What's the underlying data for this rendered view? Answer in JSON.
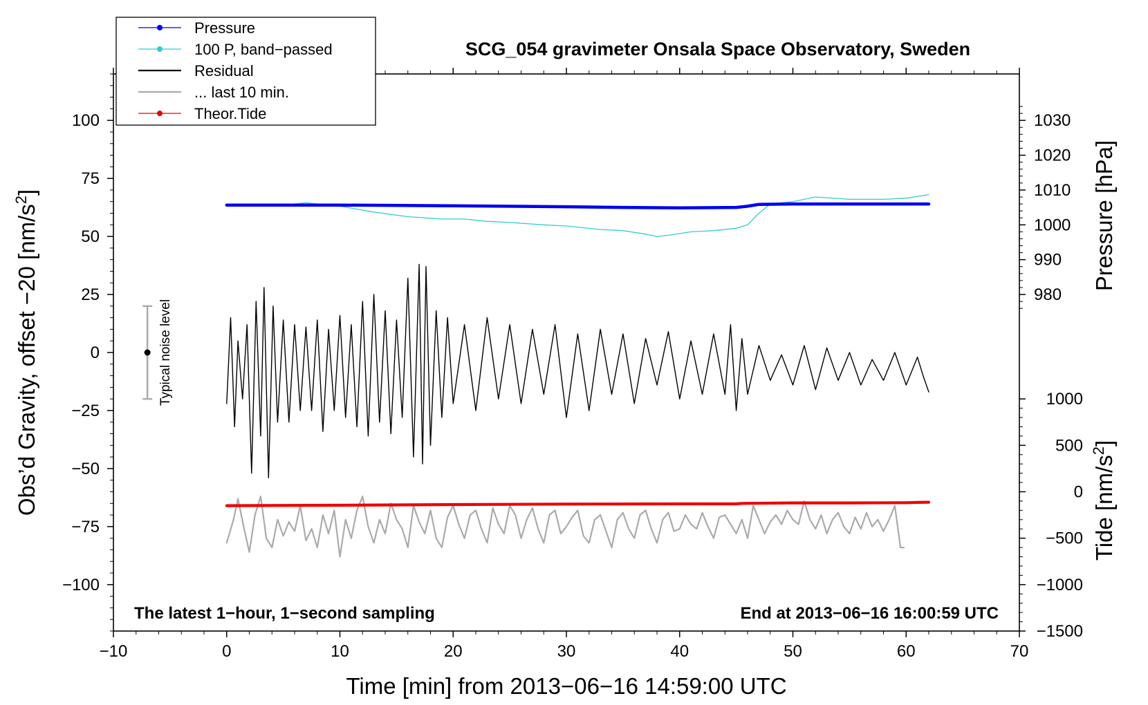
{
  "chart_data": {
    "type": "line",
    "title": "SCG_054 gravimeter Onsala Space Observatory, Sweden",
    "xlabel": "Time [min] from 2013−06−16 14:59:00 UTC",
    "ylabel_left": "Obs’d Gravity, offset −20 [nm/s²]",
    "ylabel_left_parts": {
      "main": "Obs’d Gravity, offset −20 [nm/s",
      "sup": "2",
      "end": "]"
    },
    "ylabel_right_top": "Pressure [hPa]",
    "ylabel_right_bottom": "Tide [nm/s²]",
    "ylabel_right_bottom_parts": {
      "main": "Tide [nm/s",
      "sup": "2",
      "end": "]"
    },
    "xlim": [
      -10,
      70
    ],
    "ylim_left": [
      -120,
      120
    ],
    "x_ticks": [
      -10,
      0,
      10,
      20,
      30,
      40,
      50,
      60,
      70
    ],
    "x_tick_labels": [
      "−10",
      "0",
      "10",
      "20",
      "30",
      "40",
      "50",
      "60",
      "70"
    ],
    "y_left_ticks": [
      100,
      75,
      50,
      25,
      0,
      -25,
      -50,
      -75,
      -100
    ],
    "y_left_tick_labels": [
      "100",
      "75",
      "50",
      "25",
      "0",
      "−25",
      "−50",
      "−75",
      "−100"
    ],
    "pressure_axis": {
      "ticks": [
        1030,
        1020,
        1010,
        1000,
        990,
        980
      ],
      "tick_labels": [
        "1030",
        "1020",
        "1010",
        "1000",
        "990",
        "980"
      ],
      "map_hpa": [
        980,
        1030
      ],
      "map_left": [
        25,
        100
      ]
    },
    "tide_axis": {
      "ticks": [
        1000,
        500,
        0,
        -500,
        -1000,
        -1500
      ],
      "tick_labels": [
        "1000",
        "500",
        "0",
        "−500",
        "−1000",
        "−1500"
      ],
      "map_tide": [
        -1500,
        1000
      ],
      "map_left": [
        -120,
        -20
      ]
    },
    "legend": [
      {
        "label": "Pressure",
        "color": "#0000ee",
        "marker": true
      },
      {
        "label": "100 P, band−passed",
        "color": "#00cccc",
        "marker": true
      },
      {
        "label": "Residual",
        "color": "#000000",
        "marker": false
      },
      {
        "label": "... last 10 min.",
        "color": "#aaaaaa",
        "marker": false
      },
      {
        "label": "Theor.Tide",
        "color": "#ee0000",
        "marker": true
      }
    ],
    "noise_bar": {
      "label": "Typical noise level",
      "x": -7,
      "y_center": 0,
      "y_low": -20,
      "y_high": 20
    },
    "annotation_left": "The latest 1−hour, 1−second sampling",
    "annotation_right": "End at 2013−06−16 16:00:59 UTC",
    "series": [
      {
        "name": "Pressure",
        "color": "#0000ee",
        "axis": "left",
        "points": [
          [
            0,
            63.5
          ],
          [
            10,
            63.5
          ],
          [
            20,
            63.2
          ],
          [
            30,
            62.8
          ],
          [
            35,
            62.5
          ],
          [
            40,
            62.3
          ],
          [
            45,
            62.5
          ],
          [
            46,
            63.0
          ],
          [
            47,
            63.8
          ],
          [
            50,
            64.0
          ],
          [
            55,
            64.0
          ],
          [
            60,
            64.0
          ],
          [
            62,
            64.0
          ]
        ]
      },
      {
        "name": "100 P, band−passed",
        "color": "#33cccc",
        "axis": "left",
        "points": [
          [
            0,
            63.5
          ],
          [
            5,
            63.5
          ],
          [
            7,
            64.5
          ],
          [
            10,
            63.0
          ],
          [
            13,
            60.5
          ],
          [
            16,
            58.5
          ],
          [
            19,
            57.5
          ],
          [
            21,
            57.5
          ],
          [
            23,
            56.5
          ],
          [
            25,
            56.0
          ],
          [
            28,
            55.0
          ],
          [
            30,
            54.5
          ],
          [
            33,
            53.0
          ],
          [
            35,
            52.5
          ],
          [
            37,
            51.0
          ],
          [
            38,
            50.0
          ],
          [
            39,
            50.5
          ],
          [
            41,
            52.0
          ],
          [
            43,
            52.5
          ],
          [
            45,
            53.5
          ],
          [
            46,
            55.0
          ],
          [
            47,
            60.0
          ],
          [
            48,
            64.0
          ],
          [
            50,
            65.0
          ],
          [
            52,
            67.0
          ],
          [
            55,
            66.0
          ],
          [
            58,
            66.0
          ],
          [
            60,
            66.5
          ],
          [
            62,
            68.0
          ]
        ]
      },
      {
        "name": "Residual",
        "color": "#000000",
        "axis": "left",
        "points": [
          [
            0,
            -22
          ],
          [
            0.35,
            15
          ],
          [
            0.7,
            -32
          ],
          [
            1,
            5
          ],
          [
            1.4,
            -20
          ],
          [
            1.8,
            12
          ],
          [
            2.2,
            -52
          ],
          [
            2.6,
            22
          ],
          [
            3,
            -36
          ],
          [
            3.3,
            28
          ],
          [
            3.7,
            -54
          ],
          [
            4.1,
            20
          ],
          [
            4.5,
            -30
          ],
          [
            5,
            14
          ],
          [
            5.5,
            -30
          ],
          [
            6,
            12
          ],
          [
            6.5,
            -25
          ],
          [
            7,
            11
          ],
          [
            7.5,
            -25
          ],
          [
            8,
            14
          ],
          [
            8.5,
            -34
          ],
          [
            9,
            10
          ],
          [
            9.5,
            -25
          ],
          [
            10,
            16
          ],
          [
            10.5,
            -28
          ],
          [
            11,
            12
          ],
          [
            11.5,
            -32
          ],
          [
            12,
            22
          ],
          [
            12.5,
            -36
          ],
          [
            13,
            25
          ],
          [
            13.5,
            -30
          ],
          [
            14,
            18
          ],
          [
            14.5,
            -35
          ],
          [
            15,
            14
          ],
          [
            15.5,
            -28
          ],
          [
            16,
            32
          ],
          [
            16.5,
            -45
          ],
          [
            17,
            38
          ],
          [
            17.3,
            -48
          ],
          [
            17.6,
            37
          ],
          [
            18,
            -40
          ],
          [
            18.5,
            18
          ],
          [
            19,
            -28
          ],
          [
            19.5,
            15
          ],
          [
            20,
            -22
          ],
          [
            21,
            12
          ],
          [
            22,
            -25
          ],
          [
            23,
            15
          ],
          [
            24,
            -20
          ],
          [
            25,
            12
          ],
          [
            26,
            -22
          ],
          [
            27,
            10
          ],
          [
            28,
            -18
          ],
          [
            29,
            12
          ],
          [
            30,
            -28
          ],
          [
            31,
            8
          ],
          [
            32,
            -25
          ],
          [
            33,
            10
          ],
          [
            34,
            -18
          ],
          [
            35,
            8
          ],
          [
            36,
            -22
          ],
          [
            37,
            6
          ],
          [
            38,
            -14
          ],
          [
            39,
            9
          ],
          [
            40,
            -20
          ],
          [
            41,
            5
          ],
          [
            42,
            -18
          ],
          [
            43,
            8
          ],
          [
            44,
            -18
          ],
          [
            44.5,
            12
          ],
          [
            45,
            -25
          ],
          [
            45.5,
            6
          ],
          [
            46,
            -18
          ],
          [
            47,
            3
          ],
          [
            48,
            -12
          ],
          [
            49,
            -1
          ],
          [
            50,
            -14
          ],
          [
            51,
            3
          ],
          [
            52,
            -16
          ],
          [
            53,
            2
          ],
          [
            54,
            -12
          ],
          [
            55,
            0
          ],
          [
            56,
            -14
          ],
          [
            57,
            -3
          ],
          [
            58,
            -12
          ],
          [
            59,
            0
          ],
          [
            60,
            -14
          ],
          [
            61,
            -2
          ],
          [
            61.5,
            -10
          ],
          [
            62,
            -17
          ]
        ]
      },
      {
        "name": "Theor.Tide",
        "color": "#ee0000",
        "axis": "left",
        "points": [
          [
            0,
            -66
          ],
          [
            10,
            -65.8
          ],
          [
            20,
            -65.5
          ],
          [
            30,
            -65.3
          ],
          [
            40,
            -65.2
          ],
          [
            45,
            -65.2
          ],
          [
            45.5,
            -65.0
          ],
          [
            50,
            -64.8
          ],
          [
            55,
            -64.8
          ],
          [
            60,
            -64.7
          ],
          [
            61,
            -64.6
          ],
          [
            62,
            -64.5
          ]
        ]
      },
      {
        "name": "... last 10 min.",
        "color": "#aaaaaa",
        "axis": "left",
        "points": [
          [
            0,
            -82
          ],
          [
            0.6,
            -72
          ],
          [
            1,
            -63
          ],
          [
            1.5,
            -75
          ],
          [
            2,
            -86
          ],
          [
            2.5,
            -70
          ],
          [
            3,
            -62
          ],
          [
            3.5,
            -80
          ],
          [
            4,
            -84
          ],
          [
            4.5,
            -72
          ],
          [
            5,
            -79
          ],
          [
            5.5,
            -73
          ],
          [
            6,
            -77
          ],
          [
            6.5,
            -66
          ],
          [
            7,
            -81
          ],
          [
            7.5,
            -76
          ],
          [
            8,
            -84
          ],
          [
            8.5,
            -70
          ],
          [
            9,
            -78
          ],
          [
            9.5,
            -68
          ],
          [
            10,
            -88
          ],
          [
            10.5,
            -72
          ],
          [
            11,
            -80
          ],
          [
            11.5,
            -68
          ],
          [
            12,
            -62
          ],
          [
            12.5,
            -75
          ],
          [
            13,
            -82
          ],
          [
            13.5,
            -72
          ],
          [
            14,
            -78
          ],
          [
            14.5,
            -65
          ],
          [
            15,
            -72
          ],
          [
            15.5,
            -76
          ],
          [
            16,
            -84
          ],
          [
            16.5,
            -66
          ],
          [
            17,
            -73
          ],
          [
            17.5,
            -78
          ],
          [
            18,
            -68
          ],
          [
            18.5,
            -80
          ],
          [
            19,
            -84
          ],
          [
            19.5,
            -71
          ],
          [
            20,
            -66
          ],
          [
            20.5,
            -74
          ],
          [
            21,
            -80
          ],
          [
            21.5,
            -70
          ],
          [
            22,
            -68
          ],
          [
            22.5,
            -76
          ],
          [
            23,
            -82
          ],
          [
            23.5,
            -67
          ],
          [
            24,
            -74
          ],
          [
            24.5,
            -78
          ],
          [
            25,
            -66
          ],
          [
            25.5,
            -70
          ],
          [
            26,
            -80
          ],
          [
            26.5,
            -72
          ],
          [
            27,
            -67
          ],
          [
            27.5,
            -76
          ],
          [
            28,
            -82
          ],
          [
            28.5,
            -70
          ],
          [
            29,
            -68
          ],
          [
            29.5,
            -78
          ],
          [
            30,
            -75
          ],
          [
            30.5,
            -71
          ],
          [
            31,
            -68
          ],
          [
            31.5,
            -79
          ],
          [
            32,
            -82
          ],
          [
            32.5,
            -72
          ],
          [
            33,
            -70
          ],
          [
            33.5,
            -77
          ],
          [
            34,
            -84
          ],
          [
            34.5,
            -72
          ],
          [
            35,
            -69
          ],
          [
            35.5,
            -76
          ],
          [
            36,
            -80
          ],
          [
            36.5,
            -70
          ],
          [
            37,
            -68
          ],
          [
            37.5,
            -76
          ],
          [
            38,
            -82
          ],
          [
            38.5,
            -72
          ],
          [
            39,
            -69
          ],
          [
            39.5,
            -77
          ],
          [
            40,
            -76
          ],
          [
            40.5,
            -70
          ],
          [
            41,
            -74
          ],
          [
            41.5,
            -76
          ],
          [
            42,
            -69
          ],
          [
            42.5,
            -75
          ],
          [
            43,
            -80
          ],
          [
            43.5,
            -71
          ],
          [
            44,
            -70
          ],
          [
            44.5,
            -74
          ],
          [
            45,
            -78
          ],
          [
            45.5,
            -72
          ],
          [
            46,
            -80
          ],
          [
            46.5,
            -66
          ],
          [
            47,
            -72
          ],
          [
            47.5,
            -78
          ],
          [
            48,
            -73
          ],
          [
            48.5,
            -70
          ],
          [
            49,
            -74
          ],
          [
            49.5,
            -68
          ],
          [
            50,
            -72
          ],
          [
            50.5,
            -74
          ],
          [
            51,
            -64
          ],
          [
            51.5,
            -72
          ],
          [
            52,
            -76
          ],
          [
            52.5,
            -70
          ],
          [
            53,
            -78
          ],
          [
            53.5,
            -72
          ],
          [
            54,
            -69
          ],
          [
            54.5,
            -75
          ],
          [
            55,
            -78
          ],
          [
            55.5,
            -71
          ],
          [
            56,
            -76
          ],
          [
            56.5,
            -69
          ],
          [
            57,
            -75
          ],
          [
            57.5,
            -72
          ],
          [
            58,
            -77
          ],
          [
            58.5,
            -72
          ],
          [
            59,
            -66
          ],
          [
            59.5,
            -84
          ],
          [
            59.8,
            -84
          ]
        ]
      }
    ]
  }
}
